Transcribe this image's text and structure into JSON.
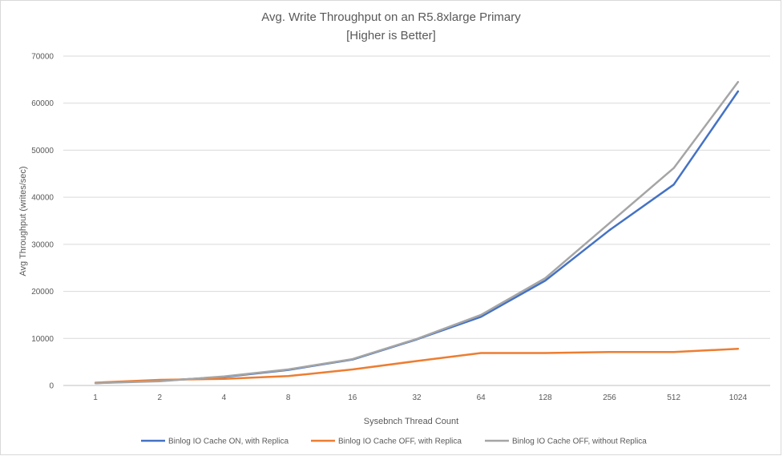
{
  "chart_data": {
    "type": "line",
    "title_line1": "Avg. Write Throughput on an R5.8xlarge Primary",
    "title_line2": "[Higher is Better]",
    "xlabel": "Sysebnch Thread Count",
    "ylabel": "Avg Throughput (writes/sec)",
    "categories": [
      "1",
      "2",
      "4",
      "8",
      "16",
      "32",
      "64",
      "128",
      "256",
      "512",
      "1024"
    ],
    "yticks": [
      "0",
      "10000",
      "20000",
      "30000",
      "40000",
      "50000",
      "60000",
      "70000"
    ],
    "ylim": [
      0,
      70000
    ],
    "grid": true,
    "legend_position": "bottom",
    "series": [
      {
        "name": "Binlog IO Cache ON, with Replica",
        "color": "#4472c4",
        "values": [
          500,
          1000,
          1800,
          3300,
          5500,
          9800,
          14600,
          22300,
          33000,
          42700,
          62500
        ]
      },
      {
        "name": "Binlog IO Cache OFF, with Replica",
        "color": "#ed7d31",
        "values": [
          600,
          1200,
          1400,
          2000,
          3400,
          5200,
          6900,
          6900,
          7100,
          7100,
          7800
        ]
      },
      {
        "name": "Binlog IO Cache OFF, without Replica",
        "color": "#a5a5a5",
        "values": [
          500,
          900,
          1900,
          3400,
          5600,
          9900,
          15000,
          22800,
          34500,
          46200,
          64500
        ]
      }
    ]
  }
}
